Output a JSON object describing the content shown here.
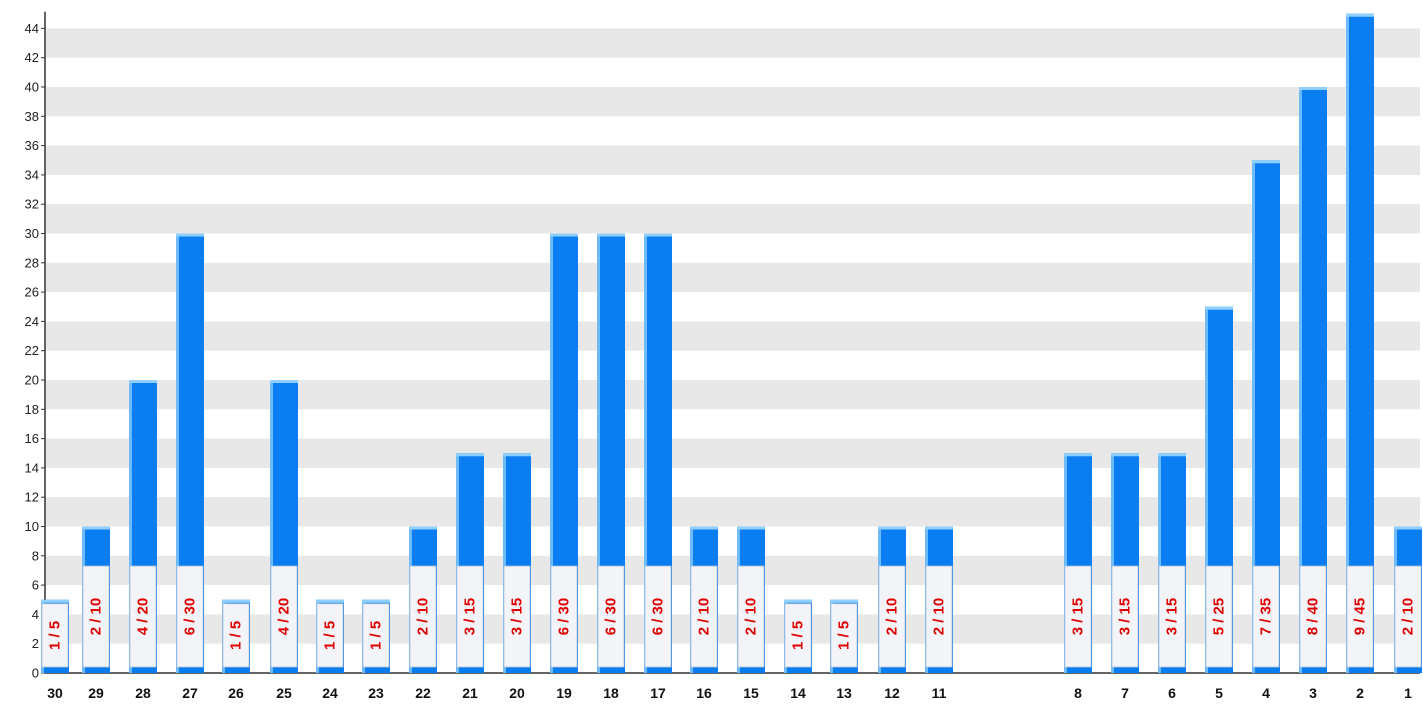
{
  "chart_data": {
    "type": "bar",
    "title": "",
    "xlabel": "",
    "ylabel": "",
    "ylim": [
      0,
      45
    ],
    "y_ticks": [
      0,
      2,
      4,
      6,
      8,
      10,
      12,
      14,
      16,
      18,
      20,
      22,
      24,
      26,
      28,
      30,
      32,
      34,
      36,
      38,
      40,
      42,
      44
    ],
    "grid": "horizontal alternating bands",
    "colors": {
      "bar": "#0a7ef0",
      "bar_highlight": "#8fd0ff",
      "label_box": "#f2f4f8",
      "label_text": "#e00000",
      "band": "#e8e8e8"
    },
    "categories": [
      "30",
      "29",
      "28",
      "27",
      "26",
      "25",
      "24",
      "23",
      "22",
      "21",
      "20",
      "19",
      "18",
      "17",
      "16",
      "15",
      "14",
      "13",
      "12",
      "11",
      "8",
      "7",
      "6",
      "5",
      "4",
      "3",
      "2",
      "1"
    ],
    "values": [
      5,
      10,
      20,
      30,
      5,
      20,
      5,
      5,
      10,
      15,
      15,
      30,
      30,
      30,
      10,
      10,
      5,
      5,
      10,
      10,
      15,
      15,
      15,
      25,
      35,
      40,
      45,
      10
    ],
    "data_labels": [
      "1 / 5",
      "2 / 10",
      "4 / 20",
      "6 / 30",
      "1 / 5",
      "4 / 20",
      "1 / 5",
      "1 / 5",
      "2 / 10",
      "3 / 15",
      "3 / 15",
      "6 / 30",
      "6 / 30",
      "6 / 30",
      "2 / 10",
      "2 / 10",
      "1 / 5",
      "1 / 5",
      "2 / 10",
      "2 / 10",
      "3 / 15",
      "3 / 15",
      "3 / 15",
      "5 / 25",
      "7 / 35",
      "8 / 40",
      "9 / 45",
      "2 / 10"
    ]
  }
}
